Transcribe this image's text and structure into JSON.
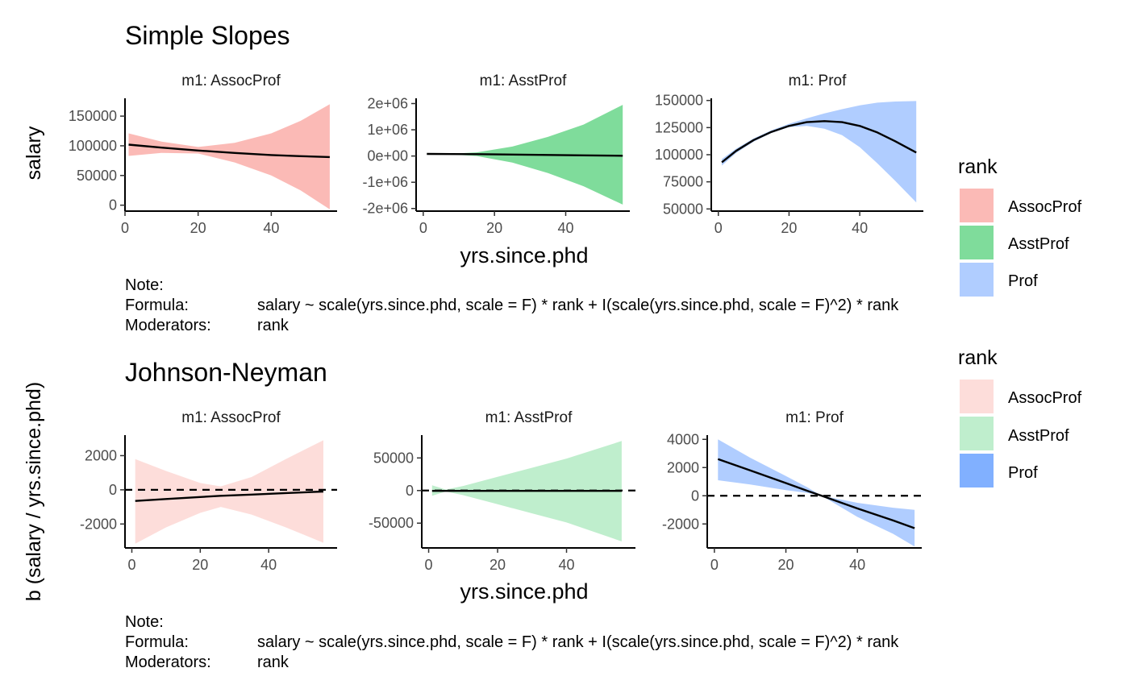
{
  "ss": {
    "title": "Simple Slopes",
    "ylabel": "salary",
    "xlabel": "yrs.since.phd",
    "legend_title": "rank",
    "legend": [
      {
        "label": "AssocProf",
        "color": "#F8766D"
      },
      {
        "label": "AsstProf",
        "color": "#00BA38"
      },
      {
        "label": "Prof",
        "color": "#619CFF"
      }
    ],
    "note": {
      "k0": "Note:",
      "v0": "",
      "k1": "Formula:",
      "v1": "salary ~ scale(yrs.since.phd, scale = F) * rank + I(scale(yrs.since.phd, scale = F)^2) * rank",
      "k2": "Moderators:",
      "v2": "rank"
    }
  },
  "jn": {
    "title": "Johnson-Neyman",
    "ylabel": "b (salary / yrs.since.phd)",
    "xlabel": "yrs.since.phd",
    "legend_title": "rank",
    "legend": [
      {
        "label": "AssocProf",
        "color": "#F8766D"
      },
      {
        "label": "AsstProf",
        "color": "#00BA38"
      },
      {
        "label": "Prof",
        "color": "#619CFF"
      }
    ],
    "note": {
      "k0": "Note:",
      "v0": "",
      "k1": "Formula:",
      "v1": "salary ~ scale(yrs.since.phd, scale = F) * rank + I(scale(yrs.since.phd, scale = F)^2) * rank",
      "k2": "Moderators:",
      "v2": "rank"
    }
  },
  "chart_data": [
    {
      "type": "line",
      "title": "Simple Slopes",
      "xlabel": "yrs.since.phd",
      "ylabel": "salary",
      "legend_title": "rank",
      "legend_position": "right",
      "grid": false,
      "panels": [
        {
          "name": "AssocProf",
          "strip": "m1: AssocProf",
          "color": "#F8766D",
          "xlim": [
            0,
            58
          ],
          "ylim": [
            -10000,
            180000
          ],
          "xticks": [
            0,
            20,
            40
          ],
          "xtick_labels": [
            "0",
            "20",
            "40"
          ],
          "yticks": [
            0,
            50000,
            100000,
            150000
          ],
          "ytick_labels": [
            "0",
            "50000",
            "100000",
            "150000"
          ],
          "x": [
            1,
            10,
            20,
            30,
            40,
            48,
            56
          ],
          "y": [
            102000,
            97000,
            92000,
            88000,
            84500,
            82500,
            81000
          ],
          "lower": [
            83000,
            88000,
            87000,
            72000,
            50000,
            25000,
            -7000
          ],
          "upper": [
            121000,
            107000,
            98000,
            105000,
            121000,
            142000,
            170000
          ]
        },
        {
          "name": "AsstProf",
          "strip": "m1: AsstProf",
          "color": "#00BA38",
          "xlim": [
            -2,
            58
          ],
          "ylim": [
            -2100000,
            2200000
          ],
          "xticks": [
            0,
            20,
            40
          ],
          "xtick_labels": [
            "0",
            "20",
            "40"
          ],
          "yticks": [
            -2000000,
            -1000000,
            0,
            1000000,
            2000000
          ],
          "ytick_labels": [
            "-2e+06",
            "-1e+06",
            "0e+00",
            "1e+06",
            "2e+06"
          ],
          "x": [
            1,
            8,
            15,
            25,
            35,
            45,
            56
          ],
          "y": [
            80000,
            75000,
            70000,
            55000,
            40000,
            25000,
            10000
          ],
          "lower": [
            70000,
            60000,
            0,
            -250000,
            -650000,
            -1150000,
            -1850000
          ],
          "upper": [
            90000,
            90000,
            140000,
            360000,
            730000,
            1200000,
            1950000
          ]
        },
        {
          "name": "Prof",
          "strip": "m1: Prof",
          "color": "#619CFF",
          "xlim": [
            -2,
            58
          ],
          "ylim": [
            48000,
            152000
          ],
          "xticks": [
            0,
            20,
            40
          ],
          "xtick_labels": [
            "0",
            "20",
            "40"
          ],
          "yticks": [
            50000,
            75000,
            100000,
            125000,
            150000
          ],
          "ytick_labels": [
            "50000",
            "75000",
            "100000",
            "125000",
            "150000"
          ],
          "x": [
            1,
            5,
            10,
            15,
            20,
            25,
            30,
            35,
            40,
            45,
            50,
            56
          ],
          "y": [
            93000,
            103500,
            113500,
            121000,
            126500,
            130000,
            131000,
            130000,
            126500,
            120500,
            112500,
            102000
          ],
          "lower": [
            90000,
            101500,
            112000,
            120000,
            125500,
            126500,
            124000,
            118000,
            107000,
            92000,
            76000,
            56000
          ],
          "upper": [
            96000,
            105500,
            115000,
            122500,
            128500,
            133500,
            138000,
            142000,
            145500,
            148000,
            149000,
            149500
          ]
        }
      ]
    },
    {
      "type": "line",
      "title": "Johnson-Neyman",
      "xlabel": "yrs.since.phd",
      "ylabel": "b (salary / yrs.since.phd)",
      "legend_title": "rank",
      "legend_position": "right",
      "grid": false,
      "reference_line": 0,
      "panels": [
        {
          "name": "AssocProf",
          "strip": "m1: AssocProf",
          "color": "#F8766D",
          "xlim": [
            -2,
            60
          ],
          "ylim": [
            -3400,
            3200
          ],
          "xticks": [
            0,
            20,
            40
          ],
          "xtick_labels": [
            "0",
            "20",
            "40"
          ],
          "yticks": [
            -2000,
            0,
            2000
          ],
          "ytick_labels": [
            "-2000",
            "0",
            "2000"
          ],
          "x": [
            1,
            10,
            20,
            26,
            35,
            45,
            56
          ],
          "y": [
            -650,
            -540,
            -420,
            -350,
            -280,
            -190,
            -100
          ],
          "lower": [
            -3150,
            -2200,
            -1350,
            -1000,
            -1450,
            -2200,
            -3100
          ],
          "upper": [
            1800,
            1100,
            400,
            200,
            750,
            1800,
            2900
          ]
        },
        {
          "name": "AsstProf",
          "strip": "m1: AsstProf",
          "color": "#00BA38",
          "xlim": [
            -2,
            60
          ],
          "ylim": [
            -88000,
            85000
          ],
          "xticks": [
            0,
            20,
            40
          ],
          "xtick_labels": [
            "0",
            "20",
            "40"
          ],
          "yticks": [
            -50000,
            0,
            50000
          ],
          "ytick_labels": [
            "-50000",
            "0",
            "50000"
          ],
          "x": [
            1,
            5,
            10,
            20,
            30,
            40,
            56
          ],
          "y": [
            -500,
            -500,
            -500,
            -500,
            -500,
            -500,
            -500
          ],
          "lower": [
            -8000,
            -1500,
            -7000,
            -21000,
            -35000,
            -49000,
            -78000
          ],
          "upper": [
            8000,
            1500,
            7000,
            21000,
            35000,
            49000,
            76000
          ]
        },
        {
          "name": "Prof",
          "strip": "m1: Prof",
          "color": "#619CFF",
          "xlim": [
            -2,
            58
          ],
          "ylim": [
            -3700,
            4300
          ],
          "xticks": [
            0,
            20,
            40
          ],
          "xtick_labels": [
            "0",
            "20",
            "40"
          ],
          "yticks": [
            -2000,
            0,
            2000,
            4000
          ],
          "ytick_labels": [
            "-2000",
            "0",
            "2000",
            "4000"
          ],
          "x": [
            1,
            10,
            20,
            26,
            30,
            40,
            50,
            56
          ],
          "y": [
            2600,
            1800,
            900,
            350,
            0,
            -900,
            -1750,
            -2300
          ],
          "lower": [
            1100,
            800,
            400,
            200,
            0,
            -1500,
            -2700,
            -3600
          ],
          "upper": [
            4000,
            2700,
            1400,
            600,
            0,
            -500,
            -850,
            -1000
          ]
        }
      ]
    }
  ]
}
